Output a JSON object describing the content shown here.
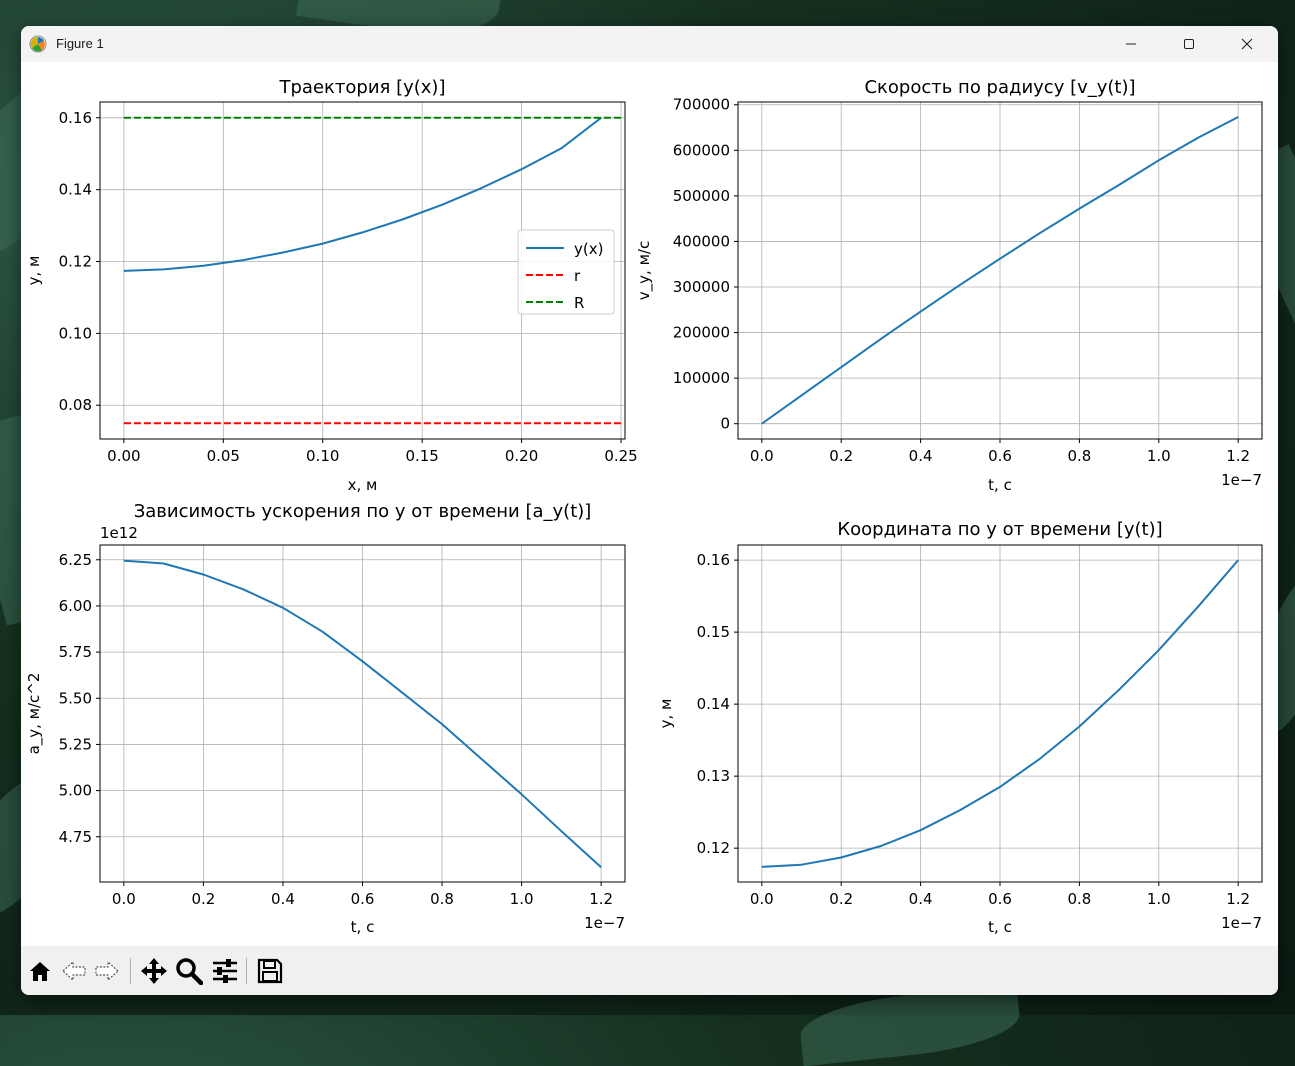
{
  "window": {
    "title": "Figure 1",
    "app_icon": "matplotlib-icon"
  },
  "controls": {
    "minimize": "minimize-icon",
    "maximize": "maximize-icon",
    "close": "close-icon"
  },
  "toolbar": {
    "buttons": [
      {
        "name": "home",
        "icon": "home-icon"
      },
      {
        "name": "back",
        "icon": "back-arrow-icon"
      },
      {
        "name": "forward",
        "icon": "forward-arrow-icon"
      },
      {
        "name": "pan",
        "icon": "move-icon"
      },
      {
        "name": "zoom",
        "icon": "zoom-icon"
      },
      {
        "name": "configure-subplots",
        "icon": "sliders-icon"
      },
      {
        "name": "save",
        "icon": "save-icon"
      }
    ]
  },
  "chart_data": [
    {
      "type": "line",
      "title": "Траектория [y(x)]",
      "xlabel": "x, м",
      "ylabel": "y, м",
      "xlim": [
        -0.012,
        0.252
      ],
      "ylim": [
        0.0706,
        0.1644
      ],
      "xticks": [
        0.0,
        0.05,
        0.1,
        0.15,
        0.2,
        0.25
      ],
      "xtick_labels": [
        "0.00",
        "0.05",
        "0.10",
        "0.15",
        "0.20",
        "0.25"
      ],
      "yticks": [
        0.08,
        0.1,
        0.12,
        0.14,
        0.16
      ],
      "ytick_labels": [
        "0.08",
        "0.10",
        "0.12",
        "0.14",
        "0.16"
      ],
      "x_offset_label": "",
      "y_offset_label": "",
      "grid": true,
      "legend": {
        "placement": "center-right",
        "entries": [
          "y(x)",
          "r",
          "R"
        ]
      },
      "series": [
        {
          "name": "y(x)",
          "color": "#1f77b4",
          "style": "solid",
          "x": [
            0.0,
            0.02,
            0.04,
            0.06,
            0.08,
            0.1,
            0.12,
            0.14,
            0.16,
            0.18,
            0.2,
            0.22,
            0.24
          ],
          "y": [
            0.1174,
            0.1178,
            0.1188,
            0.1204,
            0.1225,
            0.125,
            0.1281,
            0.1317,
            0.1358,
            0.1405,
            0.1457,
            0.1515,
            0.16
          ]
        },
        {
          "name": "r",
          "color": "#ff0000",
          "style": "dashed",
          "x": [
            0.0,
            0.25
          ],
          "y": [
            0.075,
            0.075
          ]
        },
        {
          "name": "R",
          "color": "#008000",
          "style": "dashed",
          "x": [
            0.0,
            0.25
          ],
          "y": [
            0.16,
            0.16
          ]
        }
      ]
    },
    {
      "type": "line",
      "title": "Скорость по радиусу [v_y(t)]",
      "xlabel": "t, с",
      "ylabel": "v_y, м/с",
      "xlim": [
        -6e-09,
        1.26e-07
      ],
      "ylim": [
        -33600,
        706000
      ],
      "xticks": [
        0.0,
        2e-08,
        4e-08,
        6e-08,
        8e-08,
        1e-07,
        1.2e-07
      ],
      "xtick_labels": [
        "0.0",
        "0.2",
        "0.4",
        "0.6",
        "0.8",
        "1.0",
        "1.2"
      ],
      "yticks": [
        0,
        100000,
        200000,
        300000,
        400000,
        500000,
        600000,
        700000
      ],
      "ytick_labels": [
        "0",
        "100000",
        "200000",
        "300000",
        "400000",
        "500000",
        "600000",
        "700000"
      ],
      "x_offset_label": "1e−7",
      "y_offset_label": "",
      "grid": true,
      "series": [
        {
          "name": "",
          "color": "#1f77b4",
          "style": "solid",
          "x": [
            0.0,
            1e-08,
            2e-08,
            3e-08,
            4e-08,
            5e-08,
            6e-08,
            7e-08,
            8e-08,
            9e-08,
            1e-07,
            1.1e-07,
            1.2e-07
          ],
          "y": [
            0,
            62000,
            124000,
            186000,
            246000,
            305000,
            362000,
            418000,
            472000,
            524000,
            578000,
            628000,
            673000
          ]
        }
      ]
    },
    {
      "type": "line",
      "title": "Зависимость ускорения по y от времени [a_y(t)]",
      "xlabel": "t, с",
      "ylabel": "a_y, м/с^2",
      "xlim": [
        -6e-09,
        1.26e-07
      ],
      "ylim": [
        4505000000000.0,
        6330000000000.0
      ],
      "xticks": [
        0.0,
        2e-08,
        4e-08,
        6e-08,
        8e-08,
        1e-07,
        1.2e-07
      ],
      "xtick_labels": [
        "0.0",
        "0.2",
        "0.4",
        "0.6",
        "0.8",
        "1.0",
        "1.2"
      ],
      "yticks": [
        4750000000000.0,
        5000000000000.0,
        5250000000000.0,
        5500000000000.0,
        5750000000000.0,
        6000000000000.0,
        6250000000000.0
      ],
      "ytick_labels": [
        "4.75",
        "5.00",
        "5.25",
        "5.50",
        "5.75",
        "6.00",
        "6.25"
      ],
      "x_offset_label": "1e−7",
      "y_offset_label": "1e12",
      "grid": true,
      "series": [
        {
          "name": "",
          "color": "#1f77b4",
          "style": "solid",
          "x": [
            0.0,
            1e-08,
            2e-08,
            3e-08,
            4e-08,
            5e-08,
            6e-08,
            7e-08,
            8e-08,
            9e-08,
            1e-07,
            1.1e-07,
            1.2e-07
          ],
          "y": [
            6245000000000.0,
            6230000000000.0,
            6170000000000.0,
            6090000000000.0,
            5990000000000.0,
            5860000000000.0,
            5700000000000.0,
            5530000000000.0,
            5360000000000.0,
            5170000000000.0,
            4980000000000.0,
            4780000000000.0,
            4585000000000.0
          ]
        }
      ]
    },
    {
      "type": "line",
      "title": "Координата по y от времени [y(t)]",
      "xlabel": "t, с",
      "ylabel": "y, м",
      "xlim": [
        -6e-09,
        1.26e-07
      ],
      "ylim": [
        0.1153,
        0.1621
      ],
      "xticks": [
        0.0,
        2e-08,
        4e-08,
        6e-08,
        8e-08,
        1e-07,
        1.2e-07
      ],
      "xtick_labels": [
        "0.0",
        "0.2",
        "0.4",
        "0.6",
        "0.8",
        "1.0",
        "1.2"
      ],
      "yticks": [
        0.12,
        0.13,
        0.14,
        0.15,
        0.16
      ],
      "ytick_labels": [
        "0.12",
        "0.13",
        "0.14",
        "0.15",
        "0.16"
      ],
      "x_offset_label": "1e−7",
      "y_offset_label": "",
      "grid": true,
      "series": [
        {
          "name": "",
          "color": "#1f77b4",
          "style": "solid",
          "x": [
            0.0,
            1e-08,
            2e-08,
            3e-08,
            4e-08,
            5e-08,
            6e-08,
            7e-08,
            8e-08,
            9e-08,
            1e-07,
            1.1e-07,
            1.2e-07
          ],
          "y": [
            0.1174,
            0.1177,
            0.1187,
            0.1203,
            0.1225,
            0.1253,
            0.1285,
            0.1324,
            0.1369,
            0.142,
            0.1475,
            0.1536,
            0.16
          ]
        }
      ]
    }
  ]
}
